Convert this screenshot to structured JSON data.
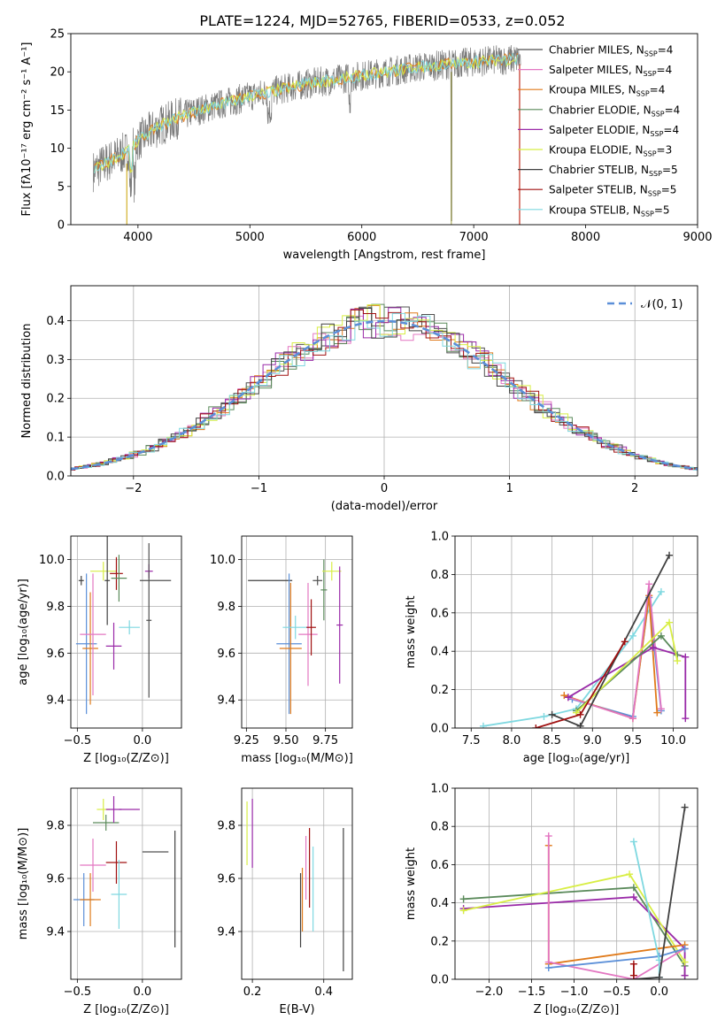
{
  "figure_title": "PLATE=1224, MJD=52765, FIBERID=0533, z=0.052",
  "model_legend": [
    {
      "label": "Chabrier MILES, N",
      "sub": "SSP",
      "tail": "=4",
      "color": "#505050"
    },
    {
      "label": "Salpeter MILES, N",
      "sub": "SSP",
      "tail": "=4",
      "color": "#e377c2"
    },
    {
      "label": "Kroupa MILES, N",
      "sub": "SSP",
      "tail": "=4",
      "color": "#e07a1a"
    },
    {
      "label": "Chabrier ELODIE, N",
      "sub": "SSP",
      "tail": "=4",
      "color": "#5a8a5a"
    },
    {
      "label": "Salpeter ELODIE, N",
      "sub": "SSP",
      "tail": "=4",
      "color": "#9a2aa8"
    },
    {
      "label": "Kroupa ELODIE, N",
      "sub": "SSP",
      "tail": "=3",
      "color": "#d8ee44"
    },
    {
      "label": "Chabrier STELIB, N",
      "sub": "SSP",
      "tail": "=5",
      "color": "#404040"
    },
    {
      "label": "Salpeter STELIB, N",
      "sub": "SSP",
      "tail": "=5",
      "color": "#a01010"
    },
    {
      "label": "Kroupa STELIB, N",
      "sub": "SSP",
      "tail": "=5",
      "color": "#7fd8e0"
    }
  ],
  "chart_data": [
    {
      "id": "spectrum",
      "type": "line",
      "xlabel": "wavelength [Angstrom, rest frame]",
      "ylabel": "Flux [fλ10⁻¹⁷ erg cm⁻² s⁻¹ A⁻¹]",
      "xlim": [
        3400,
        9000
      ],
      "ylim": [
        0,
        25
      ],
      "xticks": [
        "4000",
        "5000",
        "6000",
        "7000",
        "8000",
        "9000"
      ],
      "yticks": [
        "0",
        "5",
        "10",
        "15",
        "20",
        "25"
      ],
      "continuum": {
        "wavelength": [
          3600,
          3700,
          3800,
          3900,
          4000,
          4200,
          4500,
          5000,
          5500,
          6000,
          6500,
          7000,
          7400,
          7800,
          8200,
          8600,
          9000
        ],
        "flux": [
          7.0,
          8.0,
          8.8,
          9.6,
          11.0,
          13.0,
          14.8,
          16.8,
          18.4,
          19.5,
          20.6,
          21.3,
          21.7,
          21.8,
          21.7,
          21.4,
          21.2
        ]
      }
    },
    {
      "id": "residuals",
      "type": "histogram",
      "xlabel": "(data-model)/error",
      "ylabel": "Normed distribution",
      "xlim": [
        -2.5,
        2.5
      ],
      "ylim": [
        0,
        0.49
      ],
      "xticks": [
        "−2",
        "−1",
        "0",
        "1",
        "2"
      ],
      "yticks": [
        "0.0",
        "0.1",
        "0.2",
        "0.3",
        "0.4"
      ],
      "reference": {
        "name": "𝒩(0, 1)",
        "mean": 0,
        "sigma": 1,
        "color": "#5b8fd8"
      }
    },
    {
      "id": "age-vs-Z",
      "type": "errorbar",
      "xlabel": "Z [log₁₀(Z/Z⊙)]",
      "ylabel": "age  [log₁₀(age/yr)]",
      "xlim": [
        -0.55,
        0.3
      ],
      "ylim": [
        9.28,
        10.1
      ],
      "xticks": [
        "−0.5",
        "0.0"
      ],
      "yticks": [
        "9.4",
        "9.6",
        "9.8",
        "10.0"
      ],
      "points": [
        {
          "x": -0.47,
          "y": 9.91,
          "xerr": 0.02,
          "yerr": 0.02,
          "color": "#404040"
        },
        {
          "x": -0.43,
          "y": 9.64,
          "xerr": 0.08,
          "yerr": 0.3,
          "color": "#5b8fd8"
        },
        {
          "x": -0.4,
          "y": 9.62,
          "xerr": 0.06,
          "yerr": 0.24,
          "color": "#e07a1a"
        },
        {
          "x": -0.38,
          "y": 9.68,
          "xerr": 0.1,
          "yerr": 0.26,
          "color": "#e377c2"
        },
        {
          "x": -0.3,
          "y": 9.95,
          "xerr": 0.1,
          "yerr": 0.04,
          "color": "#d8ee44"
        },
        {
          "x": -0.27,
          "y": 9.91,
          "xerr": 0.02,
          "yerr": 0.19,
          "color": "#404040"
        },
        {
          "x": -0.22,
          "y": 9.63,
          "xerr": 0.06,
          "yerr": 0.1,
          "color": "#9a2aa8"
        },
        {
          "x": -0.2,
          "y": 9.94,
          "xerr": 0.05,
          "yerr": 0.07,
          "color": "#a01010"
        },
        {
          "x": -0.18,
          "y": 9.92,
          "xerr": 0.06,
          "yerr": 0.1,
          "color": "#5a8a5a"
        },
        {
          "x": -0.1,
          "y": 9.71,
          "xerr": 0.08,
          "yerr": 0.03,
          "color": "#7fd8e0"
        },
        {
          "x": 0.05,
          "y": 9.95,
          "xerr": 0.03,
          "yerr": 0.03,
          "color": "#9a2aa8"
        },
        {
          "x": 0.05,
          "y": 9.74,
          "xerr": 0.02,
          "yerr": 0.33,
          "color": "#505050"
        },
        {
          "x": 0.1,
          "y": 9.91,
          "xerr": 0.12,
          "yerr": 0.0,
          "color": "#505050"
        }
      ]
    },
    {
      "id": "age-vs-mass",
      "type": "errorbar",
      "xlabel": "mass [log₁₀(M/M⊙)]",
      "ylabel": "",
      "xlim": [
        9.22,
        9.92
      ],
      "ylim": [
        9.28,
        10.1
      ],
      "xticks": [
        "9.25",
        "9.50",
        "9.75"
      ],
      "yticks": [
        "9.4",
        "9.6",
        "9.8",
        "10.0"
      ],
      "points": [
        {
          "x": 9.4,
          "y": 9.91,
          "xerr": 0.14,
          "yerr": 0.0,
          "color": "#404040"
        },
        {
          "x": 9.52,
          "y": 9.64,
          "xerr": 0.08,
          "yerr": 0.3,
          "color": "#5b8fd8"
        },
        {
          "x": 9.53,
          "y": 9.62,
          "xerr": 0.07,
          "yerr": 0.28,
          "color": "#e07a1a"
        },
        {
          "x": 9.56,
          "y": 9.71,
          "xerr": 0.08,
          "yerr": 0.05,
          "color": "#7fd8e0"
        },
        {
          "x": 9.64,
          "y": 9.68,
          "xerr": 0.06,
          "yerr": 0.22,
          "color": "#e377c2"
        },
        {
          "x": 9.66,
          "y": 9.71,
          "xerr": 0.03,
          "yerr": 0.12,
          "color": "#a01010"
        },
        {
          "x": 9.7,
          "y": 9.91,
          "xerr": 0.03,
          "yerr": 0.02,
          "color": "#505050"
        },
        {
          "x": 9.74,
          "y": 9.87,
          "xerr": 0.02,
          "yerr": 0.13,
          "color": "#5a8a5a"
        },
        {
          "x": 9.79,
          "y": 9.95,
          "xerr": 0.06,
          "yerr": 0.04,
          "color": "#d8ee44"
        },
        {
          "x": 9.84,
          "y": 9.72,
          "xerr": 0.02,
          "yerr": 0.25,
          "color": "#9a2aa8"
        }
      ]
    },
    {
      "id": "mass-weight-vs-age",
      "type": "line",
      "xlabel": "age  [log₁₀(age/yr)]",
      "ylabel": "mass weight",
      "xlim": [
        7.3,
        10.3
      ],
      "ylim": [
        0,
        1
      ],
      "xticks": [
        "7.5",
        "8.0",
        "8.5",
        "9.0",
        "9.5",
        "10.0"
      ],
      "yticks": [
        "0.0",
        "0.2",
        "0.4",
        "0.6",
        "0.8",
        "1.0"
      ],
      "series": [
        {
          "color": "#7fd8e0",
          "x": [
            7.65,
            8.4,
            8.8,
            9.5,
            9.85
          ],
          "y": [
            0.01,
            0.06,
            0.1,
            0.48,
            0.71
          ]
        },
        {
          "color": "#5b8fd8",
          "x": [
            8.75,
            9.5,
            9.7,
            9.85
          ],
          "y": [
            0.15,
            0.06,
            0.68,
            0.09
          ]
        },
        {
          "color": "#e07a1a",
          "x": [
            8.65,
            9.5,
            9.7,
            9.8
          ],
          "y": [
            0.17,
            0.05,
            0.69,
            0.08
          ]
        },
        {
          "color": "#e377c2",
          "x": [
            8.7,
            9.5,
            9.7,
            9.85
          ],
          "y": [
            0.16,
            0.05,
            0.75,
            0.1
          ]
        },
        {
          "color": "#9a2aa8",
          "x": [
            8.7,
            9.75,
            10.15,
            10.15
          ],
          "y": [
            0.16,
            0.42,
            0.37,
            0.05
          ]
        },
        {
          "color": "#5a8a5a",
          "x": [
            8.8,
            9.85,
            10.05
          ],
          "y": [
            0.09,
            0.48,
            0.38
          ]
        },
        {
          "color": "#d8ee44",
          "x": [
            8.8,
            9.95,
            10.05
          ],
          "y": [
            0.08,
            0.55,
            0.35
          ]
        },
        {
          "color": "#404040",
          "x": [
            8.5,
            8.85,
            9.95
          ],
          "y": [
            0.07,
            0.01,
            0.9
          ]
        },
        {
          "color": "#a01010",
          "x": [
            8.3,
            8.85,
            9.4
          ],
          "y": [
            0.0,
            0.07,
            0.45
          ]
        }
      ]
    },
    {
      "id": "mass-vs-Z",
      "type": "errorbar",
      "xlabel": "Z [log₁₀(Z/Z⊙)]",
      "ylabel": "mass [log₁₀(M/M⊙)]",
      "xlim": [
        -0.55,
        0.3
      ],
      "ylim": [
        9.22,
        9.94
      ],
      "xticks": [
        "−0.5",
        "0.0"
      ],
      "yticks": [
        "9.4",
        "9.6",
        "9.8"
      ],
      "points": [
        {
          "x": -0.45,
          "y": 9.52,
          "xerr": 0.08,
          "yerr": 0.1,
          "color": "#5b8fd8"
        },
        {
          "x": -0.4,
          "y": 9.52,
          "xerr": 0.08,
          "yerr": 0.1,
          "color": "#e07a1a"
        },
        {
          "x": -0.38,
          "y": 9.65,
          "xerr": 0.1,
          "yerr": 0.1,
          "color": "#e377c2"
        },
        {
          "x": -0.3,
          "y": 9.86,
          "xerr": 0.05,
          "yerr": 0.04,
          "color": "#d8ee44"
        },
        {
          "x": -0.28,
          "y": 9.81,
          "xerr": 0.1,
          "yerr": 0.03,
          "color": "#5a8a5a"
        },
        {
          "x": -0.22,
          "y": 9.86,
          "xerr": 0.06,
          "yerr": 0.05,
          "color": "#9a2aa8"
        },
        {
          "x": -0.2,
          "y": 9.66,
          "xerr": 0.08,
          "yerr": 0.08,
          "color": "#a01010"
        },
        {
          "x": -0.18,
          "y": 9.54,
          "xerr": 0.06,
          "yerr": 0.13,
          "color": "#7fd8e0"
        },
        {
          "x": -0.1,
          "y": 9.86,
          "xerr": 0.08,
          "yerr": 0.0,
          "color": "#9a2aa8"
        },
        {
          "x": 0.1,
          "y": 9.7,
          "xerr": 0.1,
          "yerr": 0.0,
          "color": "#505050"
        },
        {
          "x": 0.25,
          "y": 9.56,
          "xerr": 0.0,
          "yerr": 0.22,
          "color": "#404040"
        }
      ]
    },
    {
      "id": "mass-vs-EBV",
      "type": "errorbar",
      "xlabel": "E(B-V)",
      "ylabel": "",
      "xlim": [
        0.17,
        0.48
      ],
      "ylim": [
        9.22,
        9.94
      ],
      "xticks": [
        "0.2",
        "0.4"
      ],
      "yticks": [
        "9.4",
        "9.6",
        "9.8"
      ],
      "points": [
        {
          "x": 0.185,
          "y": 9.77,
          "xerr": 0,
          "yerr": 0.12,
          "color": "#d8ee44"
        },
        {
          "x": 0.2,
          "y": 9.77,
          "xerr": 0,
          "yerr": 0.13,
          "color": "#9a2aa8"
        },
        {
          "x": 0.335,
          "y": 9.48,
          "xerr": 0,
          "yerr": 0.14,
          "color": "#404040"
        },
        {
          "x": 0.34,
          "y": 9.52,
          "xerr": 0,
          "yerr": 0.12,
          "color": "#e07a1a"
        },
        {
          "x": 0.35,
          "y": 9.64,
          "xerr": 0,
          "yerr": 0.12,
          "color": "#e377c2"
        },
        {
          "x": 0.36,
          "y": 9.64,
          "xerr": 0,
          "yerr": 0.15,
          "color": "#a01010"
        },
        {
          "x": 0.37,
          "y": 9.56,
          "xerr": 0,
          "yerr": 0.16,
          "color": "#7fd8e0"
        },
        {
          "x": 0.455,
          "y": 9.52,
          "xerr": 0,
          "yerr": 0.27,
          "color": "#404040"
        }
      ]
    },
    {
      "id": "mass-weight-vs-Z",
      "type": "line",
      "xlabel": "Z [log₁₀(Z/Z⊙)]",
      "ylabel": "mass weight",
      "xlim": [
        -2.4,
        0.45
      ],
      "ylim": [
        0,
        1
      ],
      "xticks": [
        "−2.0",
        "−1.5",
        "−1.0",
        "−0.5",
        "0.0"
      ],
      "yticks": [
        "0.0",
        "0.2",
        "0.4",
        "0.6",
        "0.8",
        "1.0"
      ],
      "series": [
        {
          "color": "#5a8a5a",
          "x": [
            -2.3,
            -0.3,
            0.3,
            0.3
          ],
          "y": [
            0.42,
            0.48,
            0.07,
            0.02
          ]
        },
        {
          "color": "#9a2aa8",
          "x": [
            -2.3,
            -0.3,
            0.3,
            0.3
          ],
          "y": [
            0.37,
            0.43,
            0.16,
            0.02
          ]
        },
        {
          "color": "#d8ee44",
          "x": [
            -2.3,
            -0.35,
            0.3
          ],
          "y": [
            0.36,
            0.55,
            0.09
          ]
        },
        {
          "color": "#e07a1a",
          "x": [
            -1.3,
            -1.3,
            0.3
          ],
          "y": [
            0.7,
            0.08,
            0.18
          ]
        },
        {
          "color": "#e377c2",
          "x": [
            -1.3,
            -1.3,
            -0.3,
            0.3
          ],
          "y": [
            0.75,
            0.09,
            0.0,
            0.16
          ]
        },
        {
          "color": "#5b8fd8",
          "x": [
            -1.3,
            0.0,
            0.3
          ],
          "y": [
            0.06,
            0.12,
            0.16
          ]
        },
        {
          "color": "#7fd8e0",
          "x": [
            -0.3,
            0.0,
            0.0
          ],
          "y": [
            0.72,
            0.1,
            0.01
          ]
        },
        {
          "color": "#404040",
          "x": [
            -0.3,
            0.0,
            0.3
          ],
          "y": [
            0.0,
            0.01,
            0.9
          ]
        },
        {
          "color": "#a01010",
          "x": [
            -0.3,
            -0.3
          ],
          "y": [
            0.02,
            0.08
          ]
        }
      ]
    }
  ]
}
